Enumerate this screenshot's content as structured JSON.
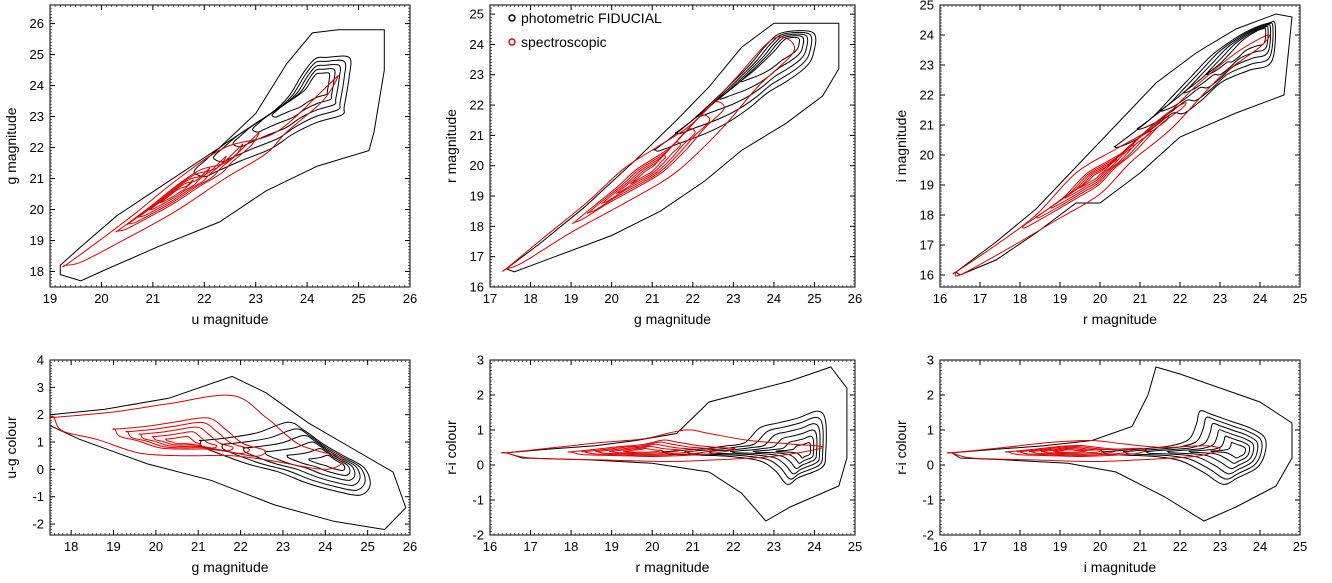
{
  "legend": {
    "entries": [
      {
        "label": "photometric FIDUCIAL",
        "color": "#000000"
      },
      {
        "label": "spectroscopic",
        "color": "#e00000"
      }
    ]
  },
  "colors": {
    "photometric": "#000000",
    "spectroscopic": "#e00000",
    "frame": "#000000"
  },
  "chart_data": [
    {
      "type": "contour",
      "id": "u-g",
      "xlabel": "u magnitude",
      "ylabel": "g magnitude",
      "xlim": [
        19,
        26
      ],
      "ylim": [
        17.5,
        26.6
      ],
      "xticks": [
        19,
        20,
        21,
        22,
        23,
        24,
        25,
        26
      ],
      "yticks": [
        18,
        19,
        20,
        21,
        22,
        23,
        24,
        25,
        26
      ],
      "photometric_peak": [
        24.2,
        24.1
      ],
      "spectroscopic_peak": [
        21.4,
        20.5
      ],
      "photometric_outer": [
        [
          19.2,
          18.2
        ],
        [
          19.6,
          18.8
        ],
        [
          20.3,
          19.8
        ],
        [
          21.3,
          20.9
        ],
        [
          22.3,
          22.0
        ],
        [
          23.0,
          23.1
        ],
        [
          23.6,
          24.7
        ],
        [
          24.1,
          25.7
        ],
        [
          24.6,
          25.8
        ],
        [
          25.5,
          25.8
        ],
        [
          25.5,
          24.5
        ],
        [
          25.3,
          22.5
        ],
        [
          25.2,
          21.9
        ],
        [
          24.2,
          21.4
        ],
        [
          23.2,
          20.6
        ],
        [
          22.3,
          19.6
        ],
        [
          21.1,
          18.8
        ],
        [
          20.0,
          18.0
        ],
        [
          19.6,
          17.7
        ],
        [
          19.2,
          17.9
        ]
      ],
      "spectroscopic_outer": [
        [
          19.3,
          18.2
        ],
        [
          19.8,
          18.8
        ],
        [
          20.6,
          19.8
        ],
        [
          21.5,
          21.0
        ],
        [
          22.4,
          22.0
        ],
        [
          23.4,
          22.5
        ],
        [
          24.4,
          24.0
        ],
        [
          24.6,
          24.3
        ],
        [
          24.3,
          23.5
        ],
        [
          23.6,
          22.5
        ],
        [
          23.2,
          21.8
        ],
        [
          22.4,
          21.0
        ],
        [
          21.4,
          19.9
        ],
        [
          20.3,
          18.9
        ],
        [
          19.6,
          18.3
        ],
        [
          19.3,
          18.2
        ]
      ],
      "photometric_levels": 6,
      "spectroscopic_levels": 6
    },
    {
      "type": "contour",
      "id": "g-r",
      "xlabel": "g magnitude",
      "ylabel": "r magnitude",
      "xlim": [
        17,
        26
      ],
      "ylim": [
        16,
        25.3
      ],
      "xticks": [
        17,
        18,
        19,
        20,
        21,
        22,
        23,
        24,
        25,
        26
      ],
      "yticks": [
        16,
        17,
        18,
        19,
        20,
        21,
        22,
        23,
        24,
        25
      ],
      "photometric_peak": [
        24.4,
        24.1
      ],
      "spectroscopic_peak": [
        20.9,
        19.8
      ],
      "photometric_outer": [
        [
          17.4,
          16.6
        ],
        [
          18.2,
          17.4
        ],
        [
          19.3,
          18.6
        ],
        [
          20.6,
          20.2
        ],
        [
          21.6,
          21.5
        ],
        [
          22.4,
          22.6
        ],
        [
          23.2,
          23.9
        ],
        [
          24.0,
          24.7
        ],
        [
          25.6,
          24.7
        ],
        [
          25.6,
          23.2
        ],
        [
          25.2,
          22.3
        ],
        [
          24.3,
          21.4
        ],
        [
          23.2,
          20.5
        ],
        [
          22.3,
          19.5
        ],
        [
          21.2,
          18.5
        ],
        [
          20.0,
          17.7
        ],
        [
          18.6,
          17.0
        ],
        [
          17.6,
          16.5
        ],
        [
          17.4,
          16.6
        ]
      ],
      "spectroscopic_outer": [
        [
          17.4,
          16.6
        ],
        [
          18.3,
          17.6
        ],
        [
          19.4,
          18.8
        ],
        [
          20.3,
          19.9
        ],
        [
          21.1,
          20.6
        ],
        [
          22.0,
          21.4
        ],
        [
          23.0,
          22.8
        ],
        [
          24.0,
          24.2
        ],
        [
          24.5,
          23.8
        ],
        [
          23.6,
          22.6
        ],
        [
          22.7,
          21.2
        ],
        [
          21.6,
          19.8
        ],
        [
          20.5,
          18.9
        ],
        [
          19.0,
          17.8
        ],
        [
          17.8,
          16.8
        ],
        [
          17.4,
          16.6
        ]
      ],
      "photometric_levels": 6,
      "spectroscopic_levels": 6
    },
    {
      "type": "contour",
      "id": "r-i",
      "xlabel": "r magnitude",
      "ylabel": "i magnitude",
      "xlim": [
        16,
        25
      ],
      "ylim": [
        15.6,
        25
      ],
      "xticks": [
        16,
        17,
        18,
        19,
        20,
        21,
        22,
        23,
        24,
        25
      ],
      "yticks": [
        16,
        17,
        18,
        19,
        20,
        21,
        22,
        23,
        24,
        25
      ],
      "photometric_peak": [
        24.0,
        24.1
      ],
      "spectroscopic_peak": [
        19.9,
        19.3
      ],
      "photometric_outer": [
        [
          16.4,
          16.1
        ],
        [
          17.4,
          17.1
        ],
        [
          18.4,
          18.2
        ],
        [
          19.4,
          19.6
        ],
        [
          20.4,
          21.0
        ],
        [
          21.4,
          22.4
        ],
        [
          22.4,
          23.4
        ],
        [
          23.4,
          24.2
        ],
        [
          24.4,
          24.7
        ],
        [
          24.8,
          24.6
        ],
        [
          24.6,
          22.0
        ],
        [
          23.4,
          21.4
        ],
        [
          22.0,
          20.6
        ],
        [
          21.0,
          19.4
        ],
        [
          20.0,
          18.4
        ],
        [
          19.4,
          18.4
        ],
        [
          18.4,
          17.4
        ],
        [
          17.4,
          16.5
        ],
        [
          16.5,
          16.0
        ],
        [
          16.4,
          16.1
        ]
      ],
      "spectroscopic_outer": [
        [
          16.4,
          16.1
        ],
        [
          17.4,
          17.0
        ],
        [
          18.4,
          18.0
        ],
        [
          19.4,
          19.4
        ],
        [
          20.4,
          20.2
        ],
        [
          21.4,
          21.0
        ],
        [
          22.4,
          22.3
        ],
        [
          23.4,
          23.4
        ],
        [
          24.2,
          24.0
        ],
        [
          24.0,
          23.6
        ],
        [
          23.0,
          22.6
        ],
        [
          21.8,
          20.9
        ],
        [
          20.8,
          19.8
        ],
        [
          20.0,
          18.7
        ],
        [
          19.0,
          17.9
        ],
        [
          17.6,
          16.8
        ],
        [
          16.5,
          16.0
        ],
        [
          16.4,
          16.1
        ]
      ],
      "photometric_levels": 6,
      "spectroscopic_levels": 6
    },
    {
      "type": "contour",
      "id": "ug-g",
      "xlabel": "g magnitude",
      "ylabel": "u-g colour",
      "xlim": [
        17.5,
        26
      ],
      "ylim": [
        -2.4,
        4
      ],
      "xticks": [
        18,
        19,
        20,
        21,
        22,
        23,
        24,
        25,
        26
      ],
      "yticks": [
        -2,
        -1,
        0,
        1,
        2,
        3,
        4
      ],
      "photometric_peak": [
        24.3,
        0.2
      ],
      "spectroscopic_peak": [
        20.6,
        1.0
      ],
      "photometric_outer": [
        [
          17.5,
          2.0
        ],
        [
          18.8,
          2.2
        ],
        [
          20.3,
          2.6
        ],
        [
          21.8,
          3.4
        ],
        [
          22.6,
          2.8
        ],
        [
          23.6,
          1.7
        ],
        [
          24.6,
          0.8
        ],
        [
          25.6,
          -0.1
        ],
        [
          25.9,
          -1.4
        ],
        [
          25.4,
          -2.2
        ],
        [
          24.2,
          -1.9
        ],
        [
          22.8,
          -1.3
        ],
        [
          21.3,
          -0.4
        ],
        [
          19.8,
          0.2
        ],
        [
          18.2,
          1.1
        ],
        [
          17.5,
          1.6
        ],
        [
          17.5,
          2.0
        ]
      ],
      "spectroscopic_outer": [
        [
          17.6,
          1.9
        ],
        [
          19.0,
          2.1
        ],
        [
          20.3,
          2.4
        ],
        [
          21.8,
          2.7
        ],
        [
          22.6,
          1.9
        ],
        [
          23.4,
          0.9
        ],
        [
          24.4,
          0.4
        ],
        [
          24.0,
          0.0
        ],
        [
          22.8,
          0.3
        ],
        [
          21.8,
          0.5
        ],
        [
          20.6,
          0.5
        ],
        [
          19.6,
          0.6
        ],
        [
          18.6,
          1.1
        ],
        [
          17.8,
          1.4
        ],
        [
          17.6,
          1.9
        ]
      ],
      "photometric_levels": 7,
      "spectroscopic_levels": 6
    },
    {
      "type": "contour",
      "id": "ri-r",
      "xlabel": "r magnitude",
      "ylabel": "r-i colour",
      "xlim": [
        16,
        25
      ],
      "ylim": [
        -2,
        3
      ],
      "xticks": [
        16,
        17,
        18,
        19,
        20,
        21,
        22,
        23,
        24,
        25
      ],
      "yticks": [
        -2,
        -1,
        0,
        1,
        2,
        3
      ],
      "photometric_peak": [
        23.8,
        0.4
      ],
      "spectroscopic_peak": [
        19.7,
        0.4
      ],
      "photometric_outer": [
        [
          16.4,
          0.35
        ],
        [
          17.4,
          0.45
        ],
        [
          18.6,
          0.55
        ],
        [
          19.6,
          0.7
        ],
        [
          20.6,
          0.9
        ],
        [
          21.4,
          1.8
        ],
        [
          22.4,
          2.1
        ],
        [
          23.4,
          2.4
        ],
        [
          24.4,
          2.8
        ],
        [
          24.8,
          2.2
        ],
        [
          24.8,
          0.2
        ],
        [
          24.6,
          -0.6
        ],
        [
          23.4,
          -1.2
        ],
        [
          22.8,
          -1.6
        ],
        [
          22.2,
          -0.8
        ],
        [
          21.4,
          -0.2
        ],
        [
          20.0,
          0.05
        ],
        [
          18.4,
          0.15
        ],
        [
          16.8,
          0.2
        ],
        [
          16.4,
          0.35
        ]
      ],
      "spectroscopic_outer": [
        [
          16.4,
          0.35
        ],
        [
          17.6,
          0.5
        ],
        [
          18.8,
          0.65
        ],
        [
          19.8,
          0.75
        ],
        [
          20.8,
          1.0
        ],
        [
          21.4,
          0.9
        ],
        [
          22.4,
          0.7
        ],
        [
          23.4,
          0.6
        ],
        [
          24.2,
          0.5
        ],
        [
          23.0,
          0.25
        ],
        [
          21.6,
          0.15
        ],
        [
          20.4,
          0.1
        ],
        [
          18.6,
          0.15
        ],
        [
          17.0,
          0.2
        ],
        [
          16.4,
          0.35
        ]
      ],
      "photometric_levels": 7,
      "spectroscopic_levels": 6
    },
    {
      "type": "contour",
      "id": "ri-i",
      "xlabel": "i magnitude",
      "ylabel": "r-i colour",
      "xlim": [
        16,
        25
      ],
      "ylim": [
        -2,
        3
      ],
      "xticks": [
        16,
        17,
        18,
        19,
        20,
        21,
        22,
        23,
        24,
        25
      ],
      "yticks": [
        -2,
        -1,
        0,
        1,
        2,
        3
      ],
      "photometric_peak": [
        23.5,
        0.4
      ],
      "spectroscopic_peak": [
        19.2,
        0.4
      ],
      "photometric_outer": [
        [
          16.3,
          0.35
        ],
        [
          17.4,
          0.45
        ],
        [
          18.6,
          0.55
        ],
        [
          19.8,
          0.7
        ],
        [
          20.8,
          1.1
        ],
        [
          21.2,
          2.0
        ],
        [
          21.4,
          2.8
        ],
        [
          22.0,
          2.6
        ],
        [
          23.0,
          2.2
        ],
        [
          24.0,
          1.8
        ],
        [
          24.8,
          1.2
        ],
        [
          24.8,
          0.2
        ],
        [
          24.4,
          -0.6
        ],
        [
          23.4,
          -1.2
        ],
        [
          22.6,
          -1.6
        ],
        [
          21.6,
          -0.9
        ],
        [
          20.4,
          -0.2
        ],
        [
          19.2,
          0.05
        ],
        [
          17.6,
          0.15
        ],
        [
          16.5,
          0.2
        ],
        [
          16.3,
          0.35
        ]
      ],
      "spectroscopic_outer": [
        [
          16.3,
          0.35
        ],
        [
          17.6,
          0.5
        ],
        [
          18.8,
          0.65
        ],
        [
          19.8,
          0.7
        ],
        [
          20.6,
          0.6
        ],
        [
          21.6,
          0.5
        ],
        [
          22.6,
          0.55
        ],
        [
          23.0,
          0.45
        ],
        [
          22.4,
          0.25
        ],
        [
          21.0,
          0.15
        ],
        [
          19.8,
          0.1
        ],
        [
          18.2,
          0.15
        ],
        [
          16.8,
          0.2
        ],
        [
          16.3,
          0.35
        ]
      ],
      "photometric_levels": 7,
      "spectroscopic_levels": 6
    }
  ]
}
